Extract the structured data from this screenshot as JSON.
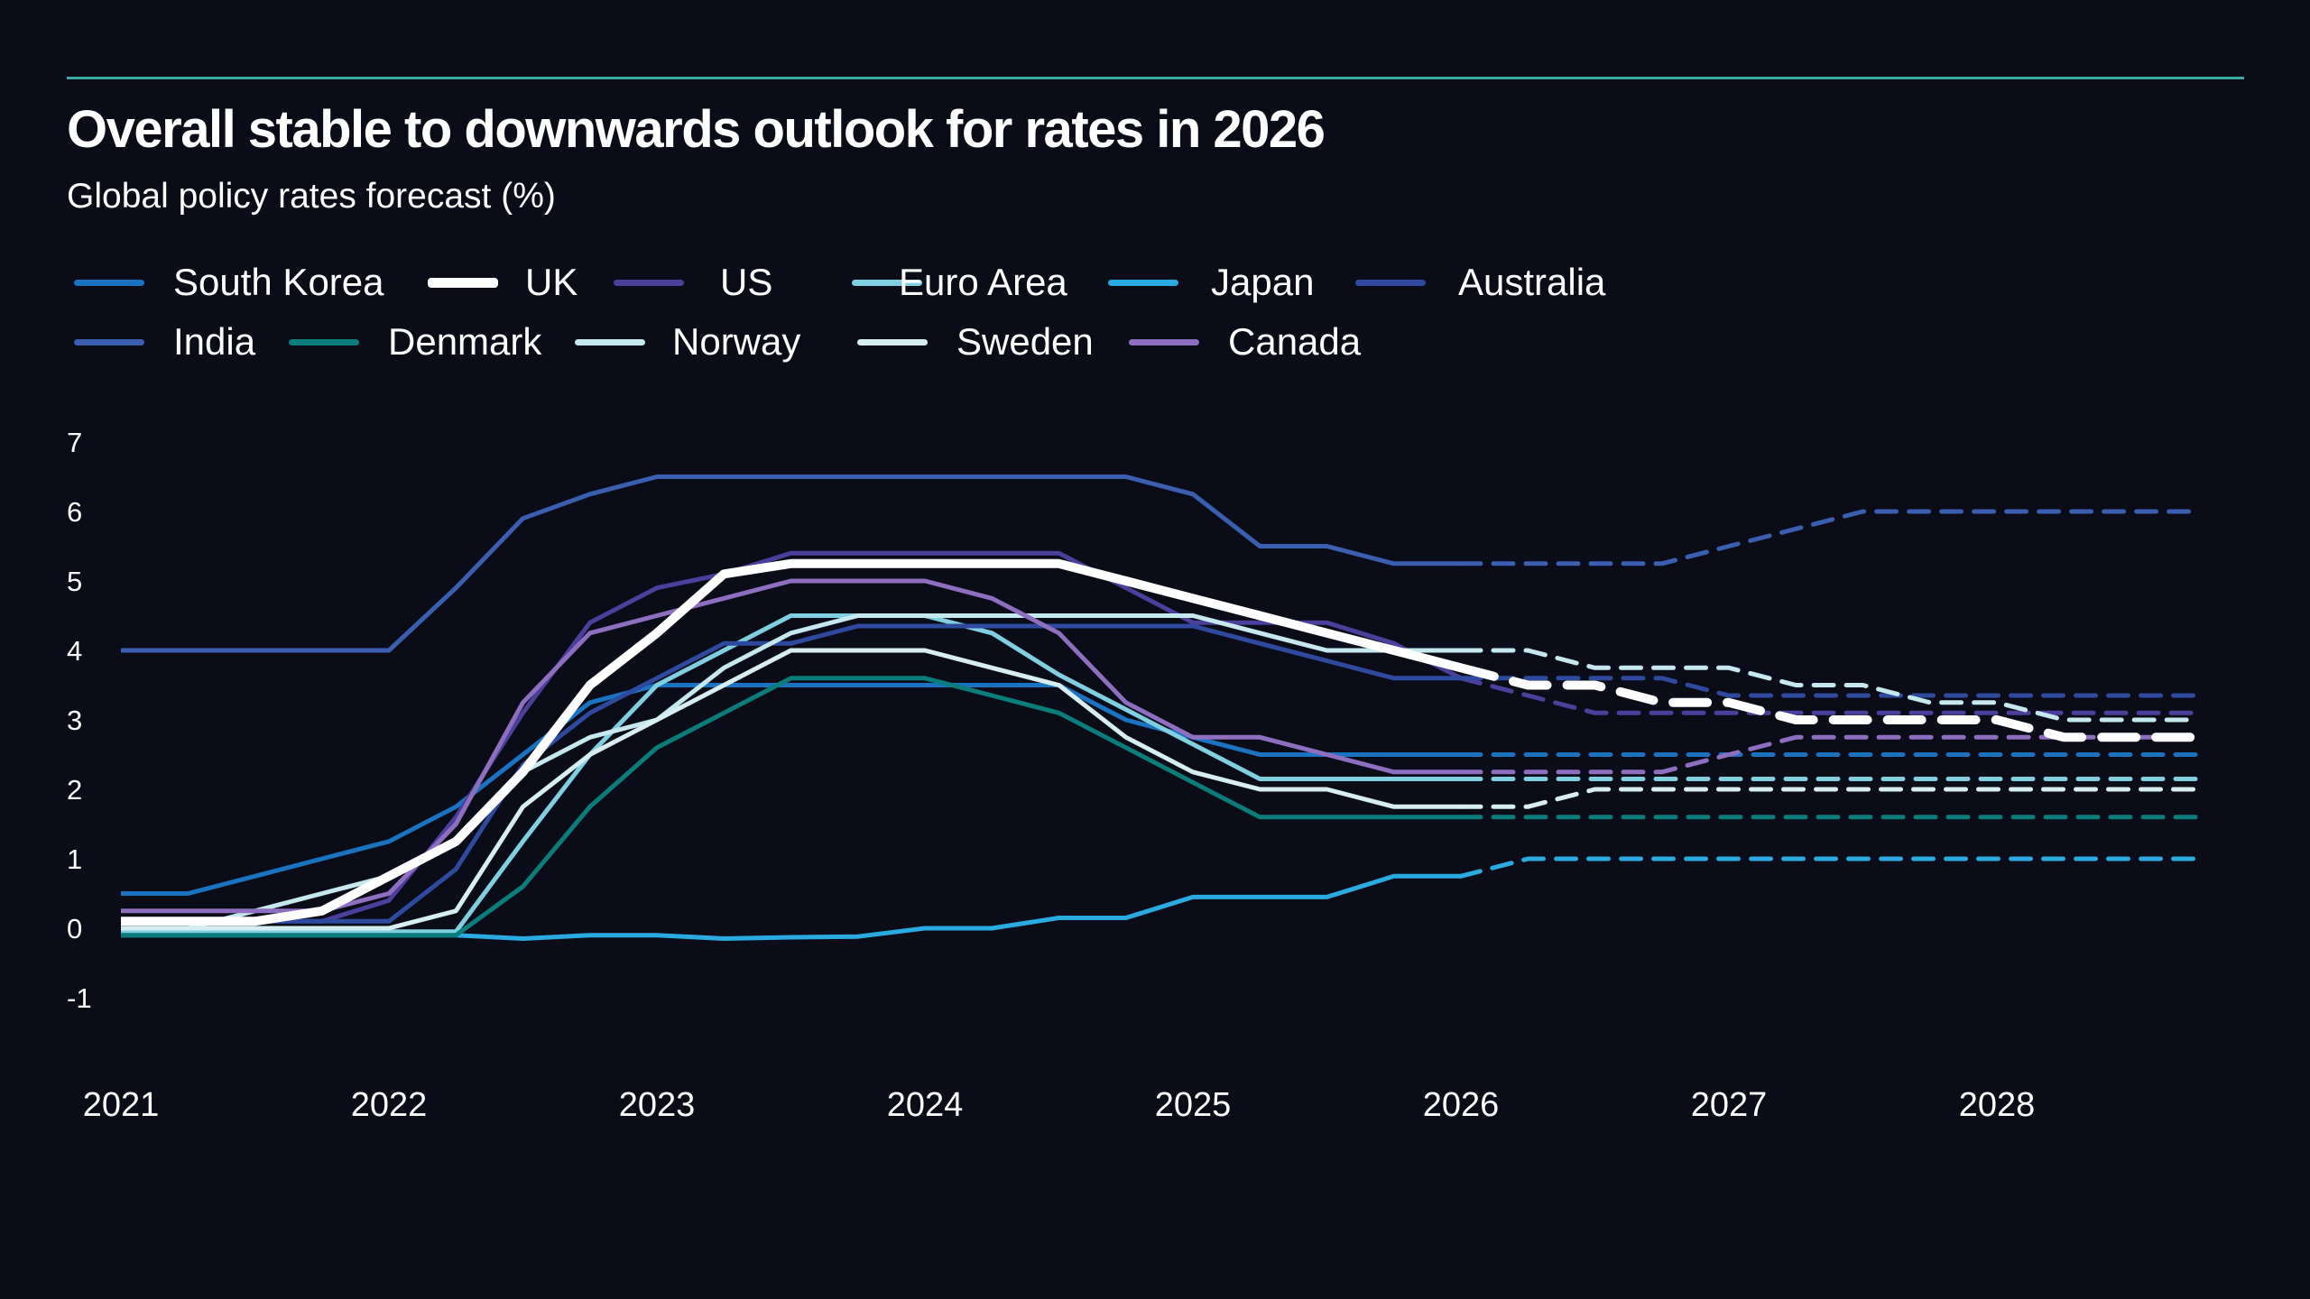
{
  "title": "Overall stable to downwards outlook for rates in 2026",
  "subtitle": "Global policy rates forecast (%)",
  "accent_rule_color": "#3aa9a0",
  "chart_data": {
    "type": "line",
    "title": "Overall stable to downwards outlook for rates in 2026",
    "subtitle": "Global policy rates forecast (%)",
    "x_start": 2021.0,
    "x_step": 0.25,
    "forecast_from": 2026.0,
    "x_ticks": [
      "2021",
      "2022",
      "2023",
      "2024",
      "2025",
      "2026",
      "2027",
      "2028"
    ],
    "y_ticks": [
      "7",
      "6",
      "5",
      "4",
      "3",
      "2",
      "1",
      "0",
      "-1"
    ],
    "ylim": [
      -1,
      7
    ],
    "xlim": [
      2021,
      2028.75
    ],
    "grid": false,
    "legend": "top",
    "series": [
      {
        "name": "South Korea",
        "color": "#1a73c0",
        "width": 5,
        "values": [
          0.5,
          0.5,
          0.75,
          1.0,
          1.25,
          1.75,
          2.5,
          3.25,
          3.5,
          3.5,
          3.5,
          3.5,
          3.5,
          3.5,
          3.5,
          3.0,
          2.75,
          2.5,
          2.5,
          2.5,
          2.5,
          2.5,
          2.5,
          2.5,
          2.5,
          2.5,
          2.5,
          2.5,
          2.5,
          2.5,
          2.5,
          2.5
        ]
      },
      {
        "name": "UK",
        "color": "#ffffff",
        "width": 10,
        "values": [
          0.1,
          0.1,
          0.1,
          0.25,
          0.75,
          1.25,
          2.25,
          3.5,
          4.25,
          5.1,
          5.25,
          5.25,
          5.25,
          5.25,
          5.25,
          5.0,
          4.75,
          4.5,
          4.25,
          4.0,
          3.75,
          3.5,
          3.5,
          3.25,
          3.25,
          3.0,
          3.0,
          3.0,
          3.0,
          2.75,
          2.75,
          2.75
        ]
      },
      {
        "name": "US",
        "color": "#4b3f9c",
        "width": 5,
        "values": [
          0.1,
          0.1,
          0.1,
          0.1,
          0.4,
          1.6,
          3.1,
          4.4,
          4.9,
          5.1,
          5.4,
          5.4,
          5.4,
          5.4,
          5.4,
          4.9,
          4.4,
          4.4,
          4.4,
          4.1,
          3.6,
          3.35,
          3.1,
          3.1,
          3.1,
          3.1,
          3.1,
          3.1,
          3.1,
          3.1,
          3.1,
          3.1
        ]
      },
      {
        "name": "Euro Area",
        "color": "#7fcfe0",
        "width": 5,
        "values": [
          -0.05,
          -0.05,
          -0.05,
          -0.05,
          -0.05,
          -0.05,
          1.25,
          2.5,
          3.5,
          4.0,
          4.5,
          4.5,
          4.5,
          4.25,
          3.65,
          3.15,
          2.65,
          2.15,
          2.15,
          2.15,
          2.15,
          2.15,
          2.15,
          2.15,
          2.15,
          2.15,
          2.15,
          2.15,
          2.15,
          2.15,
          2.15,
          2.15
        ]
      },
      {
        "name": "Japan",
        "color": "#29abe2",
        "width": 5,
        "values": [
          -0.1,
          -0.1,
          -0.1,
          -0.1,
          -0.1,
          -0.1,
          -0.15,
          -0.1,
          -0.1,
          -0.15,
          -0.13,
          -0.12,
          0.0,
          0.0,
          0.15,
          0.15,
          0.45,
          0.45,
          0.45,
          0.75,
          0.75,
          1.0,
          1.0,
          1.0,
          1.0,
          1.0,
          1.0,
          1.0,
          1.0,
          1.0,
          1.0,
          1.0
        ]
      },
      {
        "name": "Australia",
        "color": "#2e4a9e",
        "width": 5,
        "values": [
          0.1,
          0.1,
          0.1,
          0.1,
          0.1,
          0.85,
          2.35,
          3.1,
          3.6,
          4.1,
          4.1,
          4.35,
          4.35,
          4.35,
          4.35,
          4.35,
          4.35,
          4.1,
          3.85,
          3.6,
          3.6,
          3.6,
          3.6,
          3.6,
          3.35,
          3.35,
          3.35,
          3.35,
          3.35,
          3.35,
          3.35,
          3.35
        ]
      },
      {
        "name": "India",
        "color": "#3a5fb0",
        "width": 5,
        "values": [
          4.0,
          4.0,
          4.0,
          4.0,
          4.0,
          4.9,
          5.9,
          6.25,
          6.5,
          6.5,
          6.5,
          6.5,
          6.5,
          6.5,
          6.5,
          6.5,
          6.25,
          5.5,
          5.5,
          5.25,
          5.25,
          5.25,
          5.25,
          5.25,
          5.5,
          5.75,
          6.0,
          6.0,
          6.0,
          6.0,
          6.0,
          6.0
        ]
      },
      {
        "name": "Denmark",
        "color": "#0a7c7a",
        "width": 5,
        "values": [
          -0.1,
          -0.1,
          -0.1,
          -0.1,
          -0.1,
          -0.1,
          0.6,
          1.75,
          2.6,
          3.1,
          3.6,
          3.6,
          3.6,
          3.35,
          3.1,
          2.6,
          2.1,
          1.6,
          1.6,
          1.6,
          1.6,
          1.6,
          1.6,
          1.6,
          1.6,
          1.6,
          1.6,
          1.6,
          1.6,
          1.6,
          1.6,
          1.6
        ]
      },
      {
        "name": "Norway",
        "color": "#c5e7ee",
        "width": 5,
        "values": [
          0.0,
          0.0,
          0.25,
          0.5,
          0.75,
          1.25,
          2.25,
          2.75,
          3.0,
          3.75,
          4.25,
          4.5,
          4.5,
          4.5,
          4.5,
          4.5,
          4.5,
          4.25,
          4.0,
          4.0,
          4.0,
          4.0,
          3.75,
          3.75,
          3.75,
          3.5,
          3.5,
          3.25,
          3.25,
          3.0,
          3.0,
          3.0
        ]
      },
      {
        "name": "Sweden",
        "color": "#d6eef2",
        "width": 5,
        "values": [
          0.0,
          0.0,
          0.0,
          0.0,
          0.0,
          0.25,
          1.75,
          2.5,
          3.0,
          3.5,
          4.0,
          4.0,
          4.0,
          3.75,
          3.5,
          2.75,
          2.25,
          2.0,
          2.0,
          1.75,
          1.75,
          1.75,
          2.0,
          2.0,
          2.0,
          2.0,
          2.0,
          2.0,
          2.0,
          2.0,
          2.0,
          2.0
        ]
      },
      {
        "name": "Canada",
        "color": "#8e6fbf",
        "width": 5,
        "values": [
          0.25,
          0.25,
          0.25,
          0.25,
          0.5,
          1.5,
          3.25,
          4.25,
          4.5,
          4.75,
          5.0,
          5.0,
          5.0,
          4.75,
          4.25,
          3.25,
          2.75,
          2.75,
          2.5,
          2.25,
          2.25,
          2.25,
          2.25,
          2.25,
          2.5,
          2.75,
          2.75,
          2.75,
          2.75,
          2.75,
          2.75,
          2.75
        ]
      }
    ]
  }
}
